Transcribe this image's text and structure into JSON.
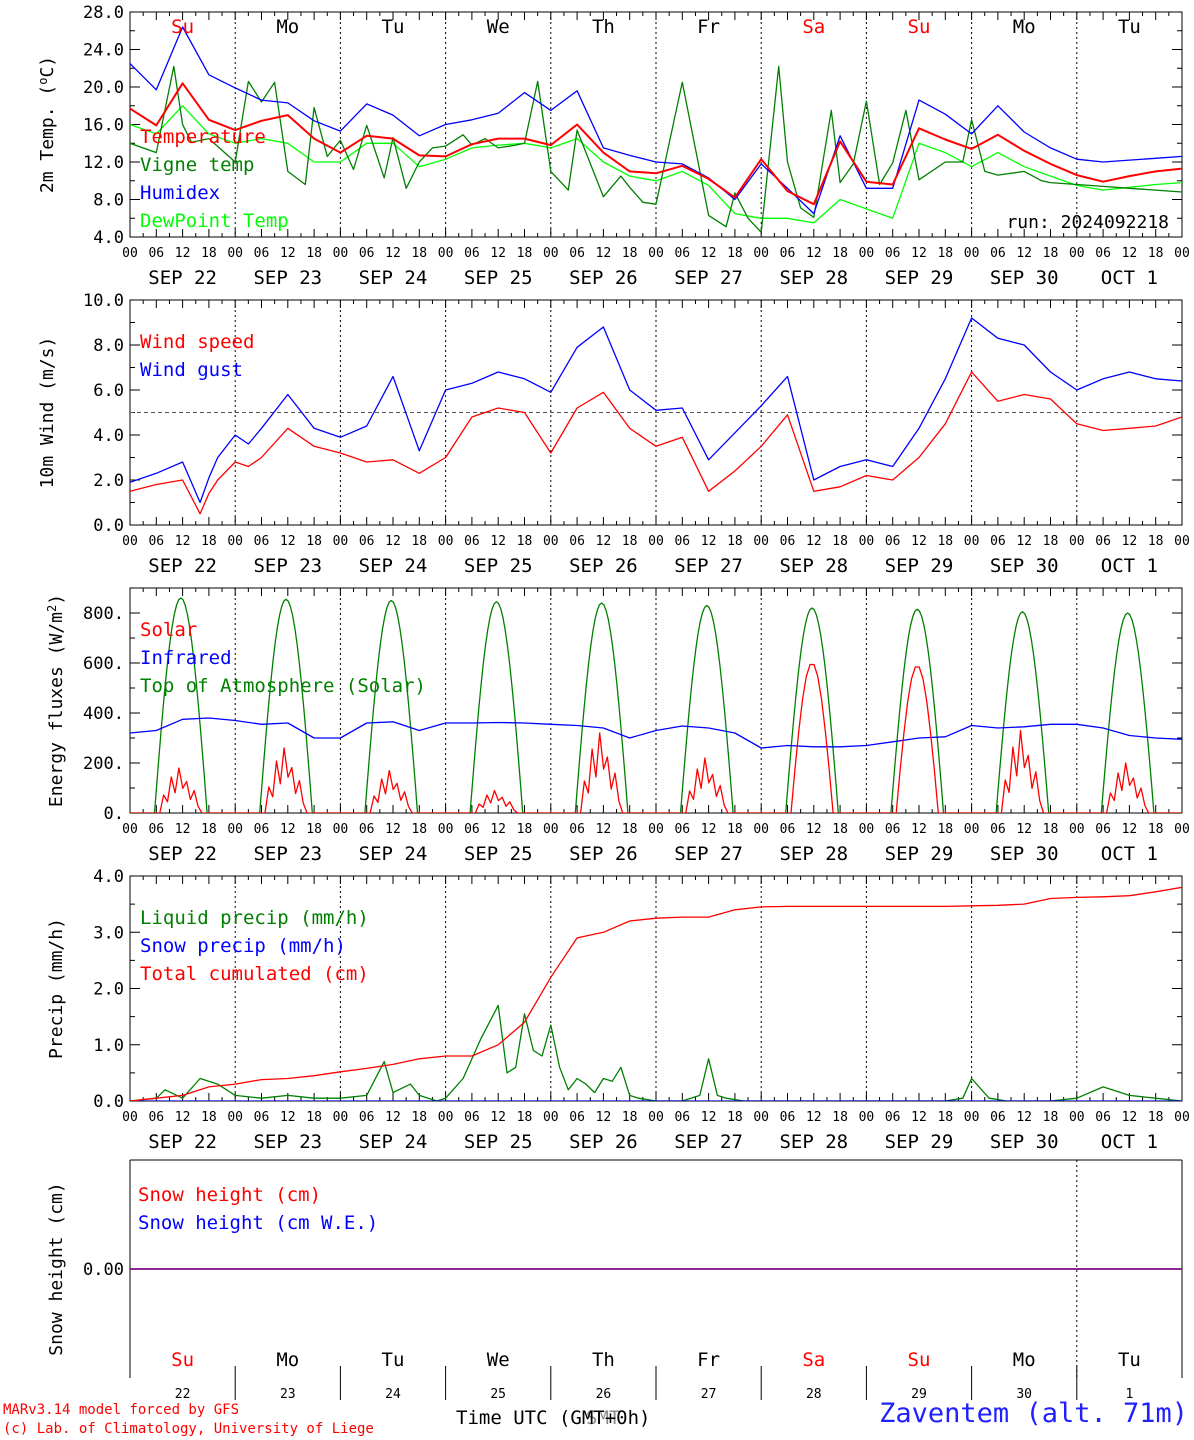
{
  "location": "Zaventem (alt. 71m)",
  "credits": [
    "MARv3.14 model forced by GFS",
    "(c) Lab. of Climatology, University of Liege"
  ],
  "time_axis_label": "Time UTC (GMT+0h)",
  "time_axis_overlap_label": "SMT",
  "run_label": "run: 2024092218",
  "hour_ticks": [
    "00",
    "06",
    "12",
    "18"
  ],
  "final_hour_tick": "00",
  "day_names": [
    {
      "label": "Su",
      "color": "#ff0000"
    },
    {
      "label": "Mo",
      "color": "#000000"
    },
    {
      "label": "Tu",
      "color": "#000000"
    },
    {
      "label": "We",
      "color": "#000000"
    },
    {
      "label": "Th",
      "color": "#000000"
    },
    {
      "label": "Fr",
      "color": "#000000"
    },
    {
      "label": "Sa",
      "color": "#ff0000"
    },
    {
      "label": "Su",
      "color": "#ff0000"
    },
    {
      "label": "Mo",
      "color": "#000000"
    },
    {
      "label": "Tu",
      "color": "#000000"
    }
  ],
  "date_labels": [
    "SEP 22",
    "SEP 23",
    "SEP 24",
    "SEP 25",
    "SEP 26",
    "SEP 27",
    "SEP 28",
    "SEP 29",
    "SEP 30",
    "OCT  1"
  ],
  "day_numbers": [
    "22",
    "23",
    "24",
    "25",
    "26",
    "27",
    "28",
    "29",
    "30",
    "1"
  ],
  "chart_data": [
    {
      "type": "line",
      "ylabel": "2m Temp. (oC)",
      "ylim": [
        4,
        28
      ],
      "yticks": [
        "4.0",
        "8.0",
        "12.0",
        "16.0",
        "20.0",
        "24.0",
        "28.0"
      ],
      "grid": false,
      "legend_position": "left",
      "x_unit": "hours since 2024-09-22 00 UTC",
      "series": [
        {
          "name": "Temperature",
          "color": "#ff0000",
          "x": [
            0,
            6,
            12,
            18,
            24,
            30,
            36,
            42,
            48,
            54,
            60,
            66,
            72,
            78,
            84,
            90,
            96,
            102,
            108,
            114,
            120,
            126,
            132,
            138,
            144,
            150,
            156,
            162,
            168,
            174,
            180,
            186,
            192,
            198,
            204,
            210,
            216,
            222,
            228,
            234,
            240
          ],
          "values": [
            17.7,
            15.9,
            20.4,
            16.5,
            15.4,
            16.4,
            17.0,
            14.5,
            13.0,
            14.8,
            14.5,
            12.7,
            12.6,
            13.9,
            14.5,
            14.5,
            13.8,
            16.0,
            13.0,
            11.0,
            10.8,
            11.6,
            10.2,
            8.2,
            12.3,
            8.9,
            7.5,
            14.2,
            9.9,
            9.6,
            15.6,
            14.4,
            13.4,
            14.9,
            13.2,
            11.8,
            10.6,
            9.9,
            10.5,
            11.0,
            11.3
          ]
        },
        {
          "name": "Vigne temp",
          "color": "#008000",
          "x": [
            0,
            6,
            10,
            12,
            14,
            18,
            24,
            27,
            30,
            33,
            36,
            40,
            42,
            45,
            48,
            51,
            54,
            58,
            60,
            63,
            66,
            69,
            72,
            76,
            78,
            81,
            84,
            88,
            90,
            93,
            96,
            100,
            102,
            108,
            112,
            114,
            117,
            120,
            126,
            132,
            136,
            138,
            141,
            144,
            148,
            150,
            153,
            156,
            160,
            162,
            165,
            168,
            171,
            174,
            177,
            180,
            186,
            190,
            192,
            195,
            198,
            204,
            208,
            210,
            216,
            222,
            228,
            234,
            240
          ],
          "values": [
            14.0,
            13.0,
            22.2,
            16.0,
            14.1,
            14.5,
            12.0,
            20.6,
            18.4,
            20.5,
            11.0,
            9.6,
            17.8,
            12.6,
            14.3,
            11.2,
            15.9,
            10.3,
            14.6,
            9.2,
            12.0,
            13.5,
            13.7,
            14.9,
            13.8,
            14.5,
            13.5,
            13.8,
            14.0,
            20.6,
            11.0,
            9.0,
            15.4,
            8.3,
            10.5,
            9.3,
            7.7,
            7.5,
            20.5,
            6.3,
            5.1,
            8.7,
            6.0,
            4.5,
            22.2,
            12.0,
            7.1,
            6.1,
            17.5,
            9.8,
            11.8,
            18.5,
            9.6,
            11.9,
            17.5,
            10.1,
            12.0,
            12.0,
            16.5,
            11.0,
            10.6,
            11.0,
            10.0,
            9.8,
            9.6,
            9.4,
            9.2,
            9.0,
            8.8
          ]
        },
        {
          "name": "Humidex",
          "color": "#0000ff",
          "x": [
            0,
            6,
            12,
            18,
            24,
            30,
            36,
            42,
            48,
            54,
            60,
            66,
            72,
            78,
            84,
            90,
            96,
            102,
            108,
            114,
            120,
            126,
            132,
            138,
            144,
            150,
            156,
            162,
            168,
            174,
            180,
            186,
            192,
            198,
            204,
            210,
            216,
            222,
            228,
            234,
            240
          ],
          "values": [
            22.5,
            19.7,
            26.4,
            21.3,
            19.9,
            18.6,
            18.3,
            16.4,
            15.3,
            18.2,
            17.0,
            14.8,
            16.0,
            16.5,
            17.2,
            19.4,
            17.5,
            19.6,
            13.5,
            12.7,
            12.0,
            11.8,
            10.3,
            8.0,
            11.8,
            9.2,
            6.5,
            14.8,
            9.2,
            9.2,
            18.6,
            17.1,
            15.0,
            18.0,
            15.2,
            13.5,
            12.3,
            12.0,
            12.2,
            12.4,
            12.6
          ]
        },
        {
          "name": "DewPoint Temp",
          "color": "#00ff00",
          "x": [
            0,
            6,
            12,
            18,
            24,
            30,
            36,
            42,
            48,
            54,
            60,
            66,
            72,
            78,
            84,
            90,
            96,
            102,
            108,
            114,
            120,
            126,
            132,
            138,
            144,
            150,
            156,
            162,
            168,
            174,
            180,
            186,
            192,
            198,
            204,
            210,
            216,
            222,
            228,
            234,
            240
          ],
          "values": [
            16.0,
            15.0,
            18.0,
            15.0,
            14.0,
            14.5,
            14.0,
            12.0,
            12.0,
            14.0,
            14.0,
            11.5,
            12.3,
            13.5,
            13.8,
            14.0,
            13.5,
            14.5,
            12.0,
            10.5,
            10.0,
            11.0,
            9.5,
            6.5,
            6.0,
            6.0,
            5.5,
            8.0,
            7.0,
            6.0,
            14.0,
            13.0,
            11.5,
            13.0,
            11.5,
            10.5,
            9.5,
            9.0,
            9.3,
            9.6,
            9.8
          ]
        }
      ]
    },
    {
      "type": "line",
      "ylabel": "10m Wind (m/s)",
      "ylim": [
        0,
        10
      ],
      "yticks": [
        "0.0",
        "2.0",
        "4.0",
        "6.0",
        "8.0",
        "10.0"
      ],
      "reference_line": 5.0,
      "legend_position": "left",
      "series": [
        {
          "name": "Wind speed",
          "color": "#ff0000",
          "x": [
            0,
            6,
            12,
            16,
            18,
            20,
            24,
            27,
            30,
            36,
            42,
            48,
            54,
            60,
            66,
            72,
            78,
            84,
            90,
            96,
            102,
            108,
            114,
            120,
            126,
            132,
            138,
            144,
            150,
            156,
            162,
            168,
            174,
            180,
            186,
            192,
            198,
            204,
            210,
            216,
            222,
            228,
            234,
            240
          ],
          "values": [
            1.5,
            1.8,
            2.0,
            0.5,
            1.4,
            2.0,
            2.8,
            2.6,
            3.0,
            4.3,
            3.5,
            3.2,
            2.8,
            2.9,
            2.3,
            3.0,
            4.8,
            5.2,
            5.0,
            3.2,
            5.2,
            5.9,
            4.3,
            3.5,
            3.9,
            1.5,
            2.4,
            3.5,
            4.9,
            1.5,
            1.7,
            2.2,
            2.0,
            3.0,
            4.5,
            6.8,
            5.5,
            5.8,
            5.6,
            4.5,
            4.2,
            4.3,
            4.4,
            4.8
          ]
        },
        {
          "name": "Wind gust",
          "color": "#0000ff",
          "x": [
            0,
            6,
            12,
            16,
            18,
            20,
            24,
            27,
            30,
            36,
            42,
            48,
            54,
            60,
            66,
            72,
            78,
            84,
            90,
            96,
            102,
            108,
            114,
            120,
            126,
            132,
            138,
            144,
            150,
            156,
            162,
            168,
            174,
            180,
            186,
            192,
            198,
            204,
            210,
            216,
            222,
            228,
            234,
            240
          ],
          "values": [
            1.9,
            2.3,
            2.8,
            1.0,
            2.1,
            3.0,
            4.0,
            3.6,
            4.3,
            5.8,
            4.3,
            3.9,
            4.4,
            6.6,
            3.3,
            6.0,
            6.3,
            6.8,
            6.5,
            5.9,
            7.9,
            8.8,
            6.0,
            5.1,
            5.2,
            2.9,
            4.1,
            5.3,
            6.6,
            2.0,
            2.6,
            2.9,
            2.6,
            4.3,
            6.5,
            9.2,
            8.3,
            8.0,
            6.8,
            6.0,
            6.5,
            6.8,
            6.5,
            6.4
          ]
        }
      ]
    },
    {
      "type": "line",
      "ylabel": "Energy fluxes (W/m2)",
      "ylim": [
        0,
        900
      ],
      "yticks": [
        "0.",
        "200.",
        "400.",
        "600.",
        "800."
      ],
      "legend_position": "left",
      "series": [
        {
          "name": "Solar",
          "color": "#ff0000",
          "daily_peaks": [
            180,
            260,
            170,
            90,
            320,
            220,
            600,
            590,
            330,
            200
          ]
        },
        {
          "name": "Infrared",
          "color": "#0000ff",
          "x": [
            0,
            6,
            12,
            18,
            24,
            30,
            36,
            42,
            48,
            54,
            60,
            66,
            72,
            78,
            84,
            90,
            96,
            102,
            108,
            114,
            120,
            126,
            132,
            138,
            144,
            150,
            156,
            162,
            168,
            174,
            180,
            186,
            192,
            198,
            204,
            210,
            216,
            222,
            228,
            234,
            240
          ],
          "values": [
            320,
            330,
            375,
            380,
            370,
            355,
            360,
            300,
            300,
            360,
            365,
            330,
            360,
            360,
            362,
            360,
            355,
            350,
            340,
            300,
            330,
            348,
            340,
            320,
            260,
            270,
            265,
            265,
            270,
            285,
            300,
            305,
            350,
            340,
            345,
            355,
            355,
            340,
            310,
            300,
            295
          ]
        },
        {
          "name": "Top of Atmosphere (Solar)",
          "color": "#008000",
          "daily_peaks": [
            860,
            855,
            850,
            845,
            840,
            830,
            820,
            815,
            805,
            800
          ]
        }
      ]
    },
    {
      "type": "line",
      "ylabel": "Precip (mm/h)",
      "ylim": [
        0,
        4
      ],
      "yticks": [
        "0.0",
        "1.0",
        "2.0",
        "3.0",
        "4.0"
      ],
      "legend_position": "left",
      "series": [
        {
          "name": "Liquid precip (mm/h)",
          "color": "#008000",
          "x": [
            0,
            6,
            8,
            12,
            16,
            20,
            24,
            30,
            36,
            42,
            48,
            54,
            58,
            60,
            64,
            66,
            70,
            72,
            76,
            80,
            84,
            86,
            88,
            90,
            92,
            94,
            96,
            98,
            100,
            102,
            104,
            106,
            108,
            110,
            112,
            114,
            116,
            120,
            126,
            130,
            132,
            134,
            136,
            140,
            144,
            150,
            156,
            162,
            168,
            174,
            180,
            186,
            190,
            192,
            196,
            200,
            204,
            210,
            216,
            222,
            228,
            234,
            240
          ],
          "values": [
            0.0,
            0.05,
            0.2,
            0.05,
            0.4,
            0.3,
            0.1,
            0.05,
            0.1,
            0.05,
            0.05,
            0.1,
            0.7,
            0.15,
            0.3,
            0.1,
            0.0,
            0.05,
            0.4,
            1.1,
            1.7,
            0.5,
            0.6,
            1.55,
            0.9,
            0.8,
            1.35,
            0.6,
            0.2,
            0.4,
            0.3,
            0.15,
            0.4,
            0.35,
            0.6,
            0.1,
            0.05,
            0.0,
            0.0,
            0.1,
            0.75,
            0.1,
            0.05,
            0.0,
            0.0,
            0.0,
            0.0,
            0.0,
            0.0,
            0.0,
            0.0,
            0.0,
            0.05,
            0.4,
            0.05,
            0.0,
            0.0,
            0.0,
            0.05,
            0.25,
            0.1,
            0.05,
            0.0
          ]
        },
        {
          "name": "Snow precip (mm/h)",
          "color": "#0000ff",
          "x": [
            0,
            240
          ],
          "values": [
            0,
            0
          ]
        },
        {
          "name": "Total cumulated (cm)",
          "color": "#ff0000",
          "x": [
            0,
            6,
            12,
            18,
            24,
            30,
            36,
            42,
            48,
            54,
            60,
            66,
            72,
            78,
            84,
            90,
            96,
            102,
            108,
            114,
            120,
            126,
            132,
            138,
            144,
            150,
            156,
            162,
            168,
            174,
            180,
            186,
            192,
            198,
            204,
            210,
            216,
            222,
            228,
            234,
            240
          ],
          "values": [
            0.0,
            0.05,
            0.1,
            0.25,
            0.3,
            0.38,
            0.4,
            0.45,
            0.52,
            0.58,
            0.65,
            0.75,
            0.8,
            0.8,
            1.0,
            1.4,
            2.2,
            2.9,
            3.0,
            3.2,
            3.25,
            3.27,
            3.27,
            3.4,
            3.45,
            3.46,
            3.46,
            3.46,
            3.46,
            3.46,
            3.46,
            3.46,
            3.47,
            3.48,
            3.5,
            3.6,
            3.62,
            3.63,
            3.65,
            3.72,
            3.8
          ]
        }
      ]
    },
    {
      "type": "line",
      "ylabel": "Snow height (cm)",
      "yticks": [
        "0.00"
      ],
      "legend_position": "left",
      "series": [
        {
          "name": "Snow height (cm)",
          "color": "#ff0000",
          "x": [
            0,
            240
          ],
          "values": [
            0,
            0
          ]
        },
        {
          "name": "Snow height (cm W.E.)",
          "color": "#0000ff",
          "x": [
            0,
            240
          ],
          "values": [
            0,
            0
          ]
        }
      ]
    }
  ]
}
